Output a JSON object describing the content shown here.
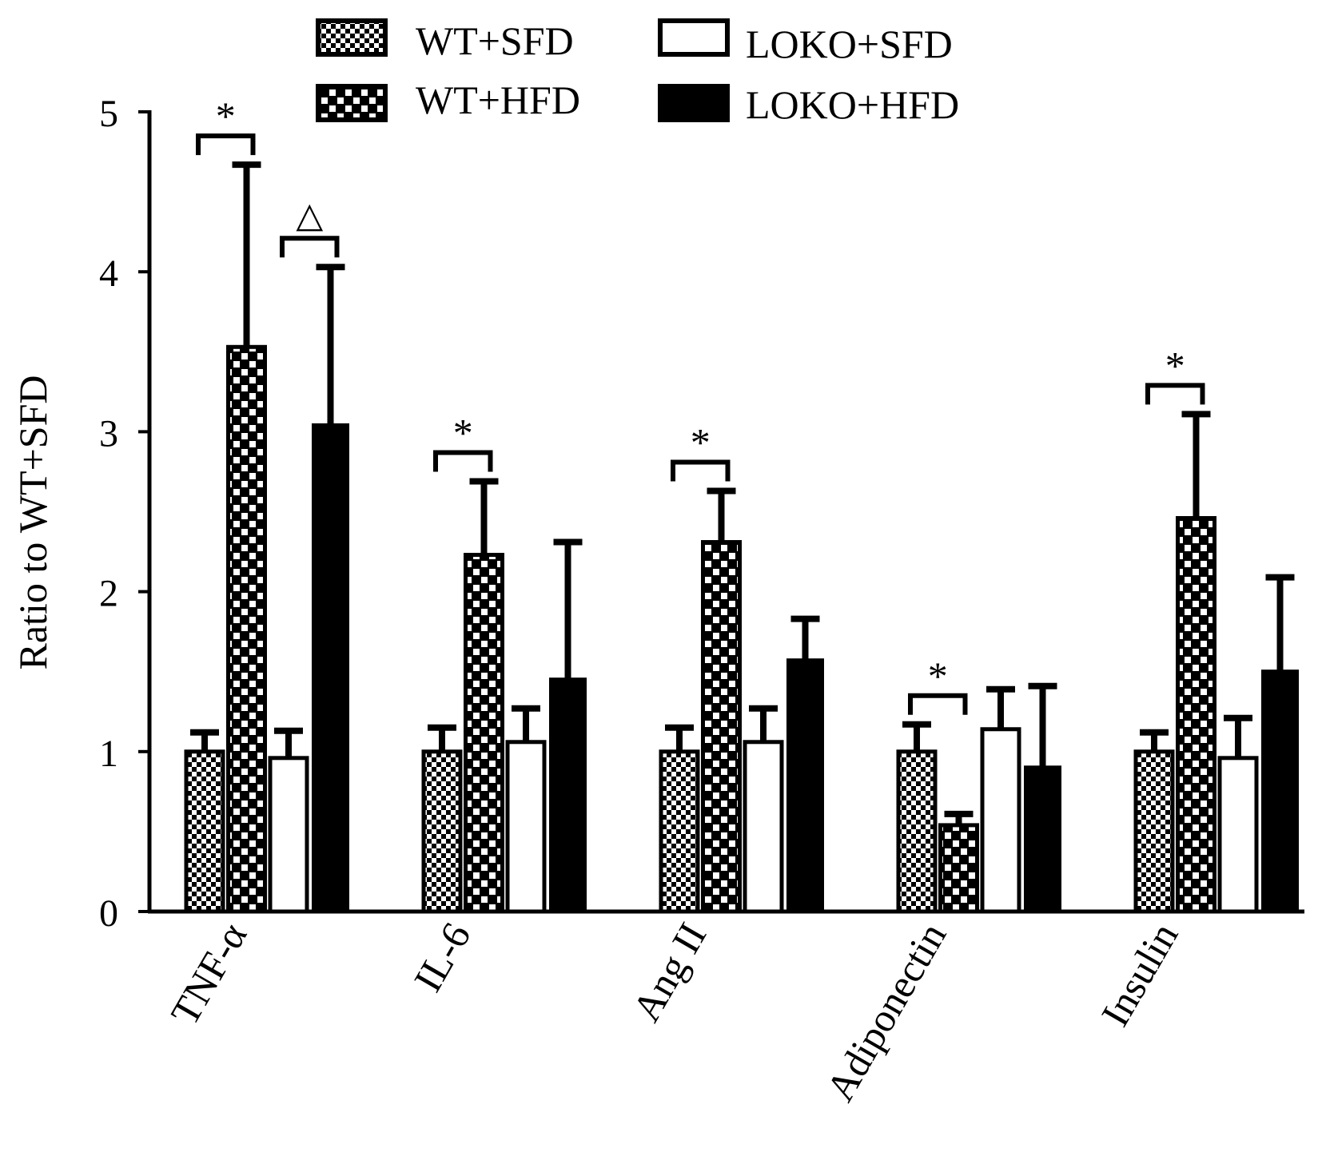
{
  "chart_data": {
    "type": "bar",
    "ylabel": "Ratio to WT+SFD",
    "ylim": [
      0,
      5
    ],
    "yticks": [
      "0",
      "1",
      "2",
      "3",
      "4",
      "5"
    ],
    "categories": [
      "TNF-α",
      "IL-6",
      "Ang II",
      "Adiponectin",
      "Insulin"
    ],
    "legend_position": "top-center",
    "series": [
      {
        "name": "WT+SFD",
        "pattern": "fine-checker",
        "values": [
          1.0,
          1.0,
          1.0,
          1.0,
          1.0
        ],
        "errors": [
          0.12,
          0.15,
          0.15,
          0.17,
          0.12
        ]
      },
      {
        "name": "WT+HFD",
        "pattern": "coarse-checker",
        "values": [
          3.53,
          2.23,
          2.31,
          0.54,
          2.46
        ],
        "errors": [
          1.14,
          0.46,
          0.32,
          0.07,
          0.65
        ]
      },
      {
        "name": "LOKO+SFD",
        "pattern": "white",
        "values": [
          0.96,
          1.06,
          1.06,
          1.14,
          0.96
        ],
        "errors": [
          0.17,
          0.21,
          0.21,
          0.25,
          0.25
        ]
      },
      {
        "name": "LOKO+HFD",
        "pattern": "black",
        "values": [
          3.05,
          1.46,
          1.58,
          0.91,
          1.51
        ],
        "errors": [
          0.98,
          0.85,
          0.25,
          0.5,
          0.58
        ]
      }
    ],
    "annotations": [
      {
        "text": "*",
        "category": "TNF-α",
        "between": [
          0,
          1
        ]
      },
      {
        "text": "△",
        "category": "TNF-α",
        "between": [
          2,
          3
        ]
      },
      {
        "text": "*",
        "category": "IL-6",
        "between": [
          0,
          1
        ]
      },
      {
        "text": "*",
        "category": "Ang II",
        "between": [
          0,
          1
        ]
      },
      {
        "text": "*",
        "category": "Adiponectin",
        "between": [
          0,
          1
        ]
      },
      {
        "text": "*",
        "category": "Insulin",
        "between": [
          0,
          1
        ]
      }
    ],
    "colors": {
      "axis": "#000000",
      "fill_dark": "#000000",
      "fill_light": "#ffffff"
    }
  }
}
